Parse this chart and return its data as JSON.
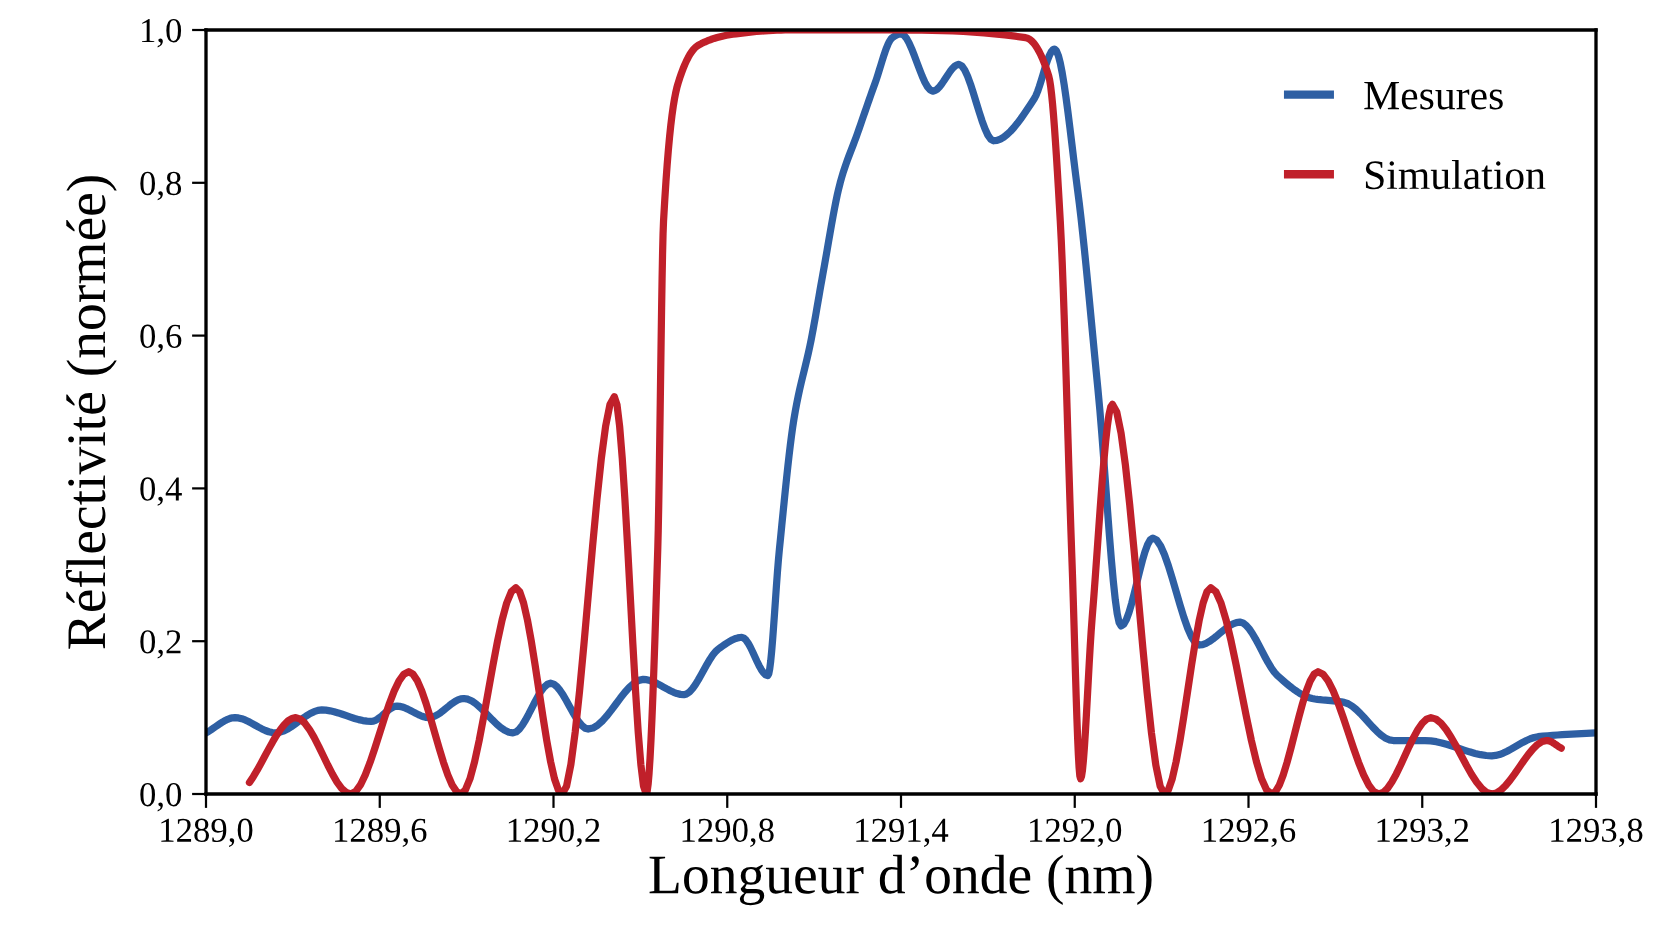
{
  "chart_data": {
    "type": "line",
    "xlabel": "Longueur d’onde (nm)",
    "ylabel": "Réflectivité (normée)",
    "xlim": [
      1289.0,
      1293.8
    ],
    "ylim": [
      0.0,
      1.0
    ],
    "xticks": [
      {
        "value": 1289.0,
        "label": "1289,0"
      },
      {
        "value": 1289.6,
        "label": "1289,6"
      },
      {
        "value": 1290.2,
        "label": "1290,2"
      },
      {
        "value": 1290.8,
        "label": "1290,8"
      },
      {
        "value": 1291.4,
        "label": "1291,4"
      },
      {
        "value": 1292.0,
        "label": "1292,0"
      },
      {
        "value": 1292.6,
        "label": "1292,6"
      },
      {
        "value": 1293.2,
        "label": "1293,2"
      },
      {
        "value": 1293.8,
        "label": "1293,8"
      }
    ],
    "yticks": [
      {
        "value": 0.0,
        "label": "0,0"
      },
      {
        "value": 0.2,
        "label": "0,2"
      },
      {
        "value": 0.4,
        "label": "0,4"
      },
      {
        "value": 0.6,
        "label": "0,6"
      },
      {
        "value": 0.8,
        "label": "0,8"
      },
      {
        "value": 1.0,
        "label": "1,0"
      }
    ],
    "grid": false,
    "legend": "top right",
    "marker": "none",
    "line_style": "solid",
    "series": [
      {
        "name": "Mesures",
        "color": "#2e5fa3",
        "x": [
          1289.0,
          1289.1,
          1289.24,
          1289.4,
          1289.57,
          1289.66,
          1289.77,
          1289.89,
          1290.06,
          1290.19,
          1290.32,
          1290.51,
          1290.65,
          1290.77,
          1290.85,
          1290.94,
          1290.98,
          1291.03,
          1291.09,
          1291.13,
          1291.19,
          1291.25,
          1291.31,
          1291.37,
          1291.4,
          1291.51,
          1291.6,
          1291.72,
          1291.86,
          1291.93,
          1292.01,
          1292.08,
          1292.16,
          1292.27,
          1292.43,
          1292.57,
          1292.7,
          1292.82,
          1292.93,
          1293.1,
          1293.21,
          1293.44,
          1293.6,
          1293.8
        ],
        "values": [
          0.08,
          0.1,
          0.08,
          0.11,
          0.095,
          0.115,
          0.1,
          0.125,
          0.08,
          0.145,
          0.085,
          0.15,
          0.13,
          0.19,
          0.205,
          0.155,
          0.32,
          0.49,
          0.595,
          0.68,
          0.8,
          0.865,
          0.93,
          0.99,
          0.995,
          0.92,
          0.955,
          0.855,
          0.91,
          0.975,
          0.79,
          0.53,
          0.22,
          0.335,
          0.195,
          0.225,
          0.155,
          0.125,
          0.12,
          0.07,
          0.07,
          0.05,
          0.075,
          0.08
        ]
      },
      {
        "name": "Simulation",
        "color": "#c0202a",
        "x": [
          1289.15,
          1289.31,
          1289.5,
          1289.7,
          1289.88,
          1290.07,
          1290.23,
          1290.41,
          1290.52,
          1290.56,
          1290.58,
          1290.63,
          1290.7,
          1290.83,
          1291.0,
          1291.4,
          1291.83,
          1291.91,
          1291.95,
          1291.99,
          1292.02,
          1292.06,
          1292.13,
          1292.31,
          1292.47,
          1292.68,
          1292.84,
          1293.05,
          1293.23,
          1293.44,
          1293.63,
          1293.68
        ],
        "values": [
          0.015,
          0.1,
          0.0,
          0.16,
          0.0,
          0.27,
          0.0,
          0.52,
          0.0,
          0.32,
          0.75,
          0.93,
          0.98,
          0.995,
          1.0,
          1.0,
          0.99,
          0.94,
          0.75,
          0.31,
          0.02,
          0.23,
          0.51,
          0.0,
          0.27,
          0.0,
          0.16,
          0.0,
          0.1,
          0.0,
          0.07,
          0.06
        ]
      }
    ]
  }
}
